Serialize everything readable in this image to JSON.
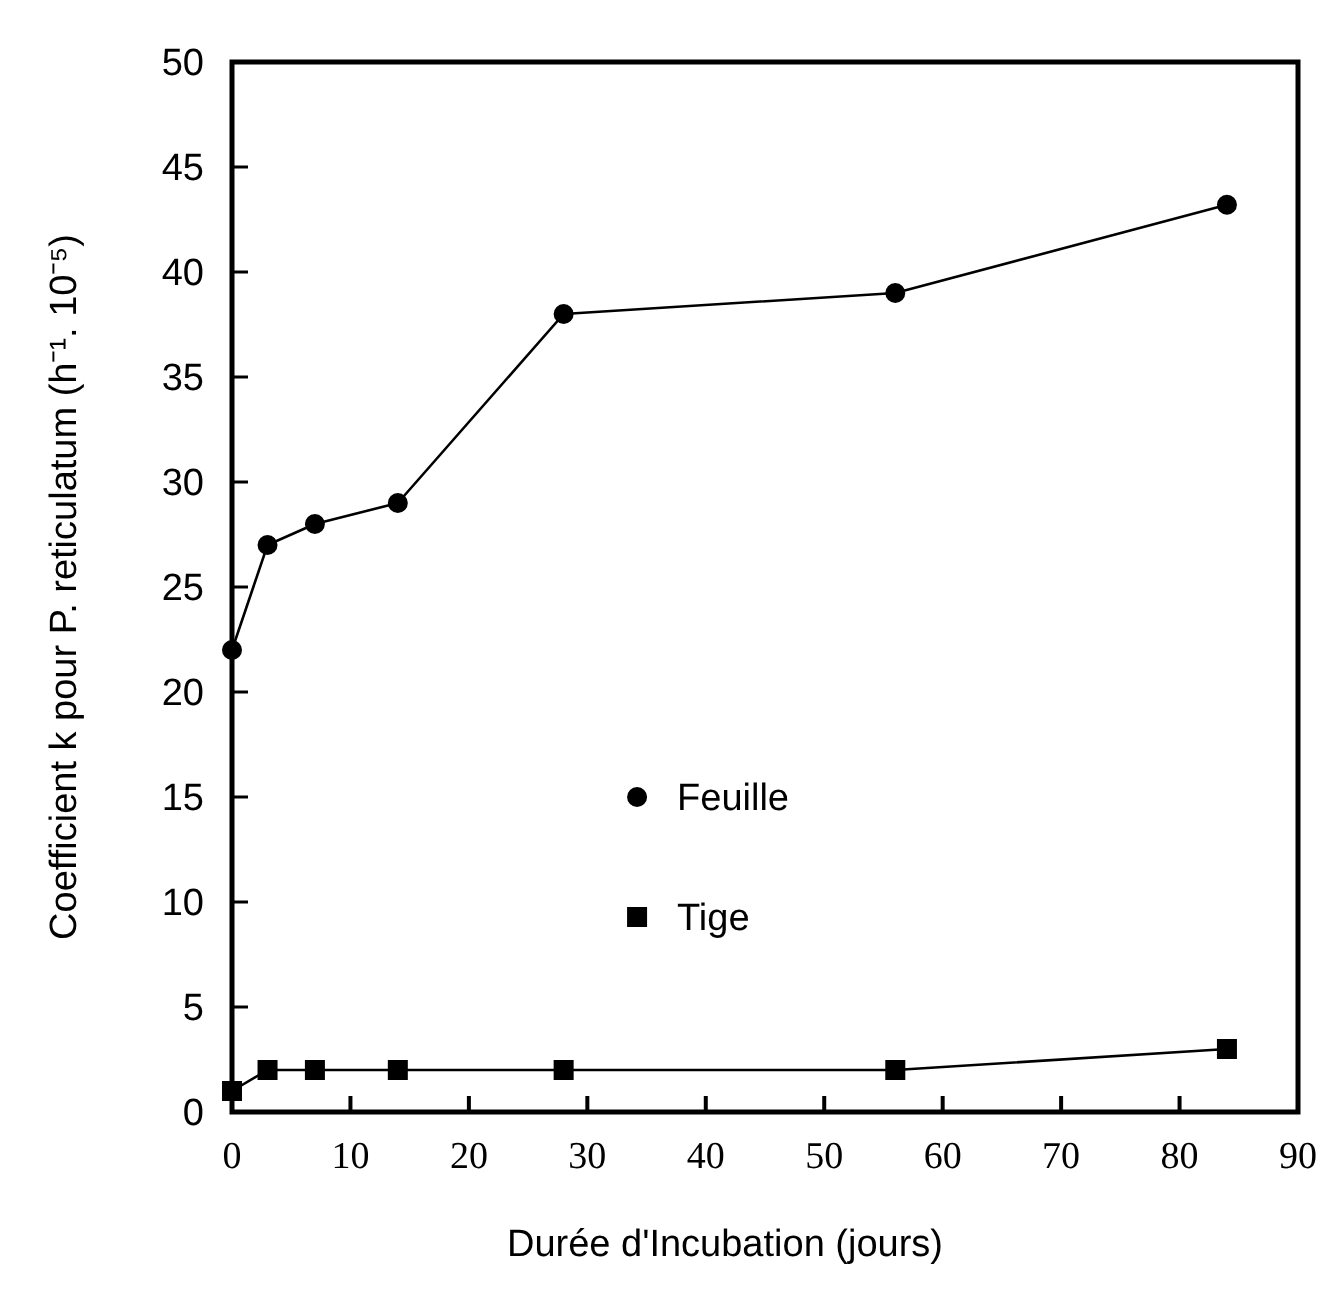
{
  "chart_data": {
    "type": "line",
    "xlabel": "Durée d'Incubation (jours)",
    "ylabel": "Coefficient k pour P. reticulatum (h⁻¹. 10⁻⁵)",
    "x": [
      0,
      3,
      7,
      14,
      28,
      56,
      84
    ],
    "series": [
      {
        "name": "Feuille",
        "color": "#000000",
        "marker": "circle",
        "values": [
          22,
          27,
          28,
          29,
          38,
          39,
          43.2
        ]
      },
      {
        "name": "Tige",
        "color": "#000000",
        "marker": "square",
        "values": [
          1,
          2,
          2,
          2,
          2,
          2,
          3
        ]
      }
    ],
    "xlim": [
      0,
      90
    ],
    "xticks": [
      0,
      10,
      20,
      30,
      40,
      50,
      60,
      70,
      80,
      90
    ],
    "ylim": [
      0,
      50
    ],
    "yticks": [
      0,
      5,
      10,
      15,
      20,
      25,
      30,
      35,
      40,
      45,
      50
    ],
    "grid": false,
    "legend": "center",
    "line_style": "solid"
  }
}
